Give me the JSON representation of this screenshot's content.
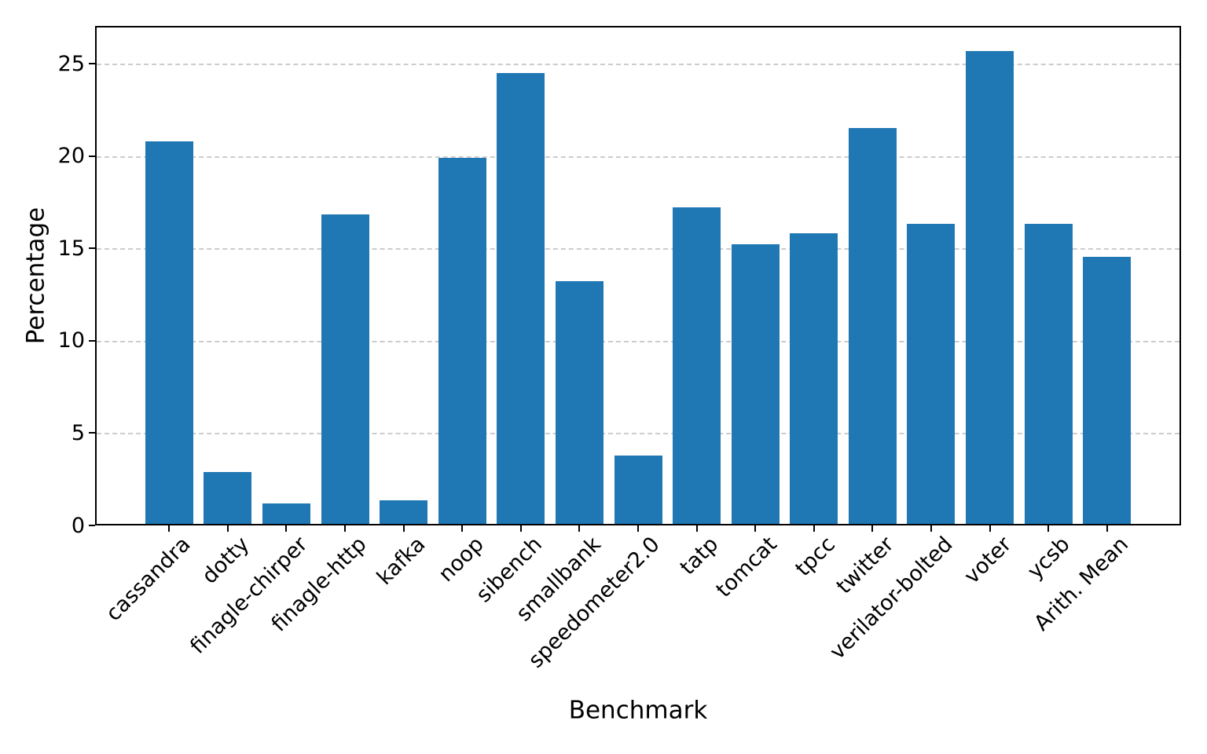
{
  "chart_data": {
    "type": "bar",
    "title": "",
    "xlabel": "Benchmark",
    "ylabel": "Percentage",
    "categories": [
      "cassandra",
      "dotty",
      "finagle-chirper",
      "finagle-http",
      "kafka",
      "noop",
      "sibench",
      "smallbank",
      "speedometer2.0",
      "tatp",
      "tomcat",
      "tpcc",
      "twitter",
      "verilator-bolted",
      "voter",
      "ycsb",
      "Arith. Mean"
    ],
    "values": [
      20.8,
      2.8,
      1.1,
      16.8,
      1.3,
      19.9,
      24.5,
      13.2,
      3.7,
      17.2,
      15.2,
      15.8,
      21.5,
      16.3,
      25.7,
      16.3,
      14.5
    ],
    "ylim": [
      0,
      27.05
    ],
    "yticks": [
      0,
      5,
      10,
      15,
      20,
      25
    ],
    "grid": "horizontal-dashed-behind-bars",
    "legend": "none",
    "x_tick_rotation_deg": 45,
    "colors": {
      "bar": "#1f77b4",
      "grid": "#cccccc",
      "spine": "#000000",
      "text": "#000000"
    }
  }
}
